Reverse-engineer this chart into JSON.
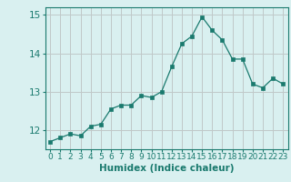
{
  "x": [
    0,
    1,
    2,
    3,
    4,
    5,
    6,
    7,
    8,
    9,
    10,
    11,
    12,
    13,
    14,
    15,
    16,
    17,
    18,
    19,
    20,
    21,
    22,
    23
  ],
  "y": [
    11.7,
    11.8,
    11.9,
    11.85,
    12.1,
    12.15,
    12.55,
    12.65,
    12.65,
    12.9,
    12.85,
    13.0,
    13.65,
    14.25,
    14.45,
    14.95,
    14.6,
    14.35,
    13.85,
    13.85,
    13.2,
    13.1,
    13.35,
    13.2
  ],
  "xlabel": "Humidex (Indice chaleur)",
  "ylim": [
    11.5,
    15.2
  ],
  "yticks": [
    12,
    13,
    14,
    15
  ],
  "xticks": [
    0,
    1,
    2,
    3,
    4,
    5,
    6,
    7,
    8,
    9,
    10,
    11,
    12,
    13,
    14,
    15,
    16,
    17,
    18,
    19,
    20,
    21,
    22,
    23
  ],
  "line_color": "#1a7a6e",
  "marker_color": "#1a7a6e",
  "bg_color": "#d9f0f0",
  "grid_color": "#c0c8c8",
  "axis_color": "#1a7a6e",
  "tick_label_color": "#1a7a6e",
  "xlabel_color": "#1a7a6e",
  "xlabel_fontsize": 7.5,
  "tick_fontsize": 6.5,
  "ytick_fontsize": 7.5
}
